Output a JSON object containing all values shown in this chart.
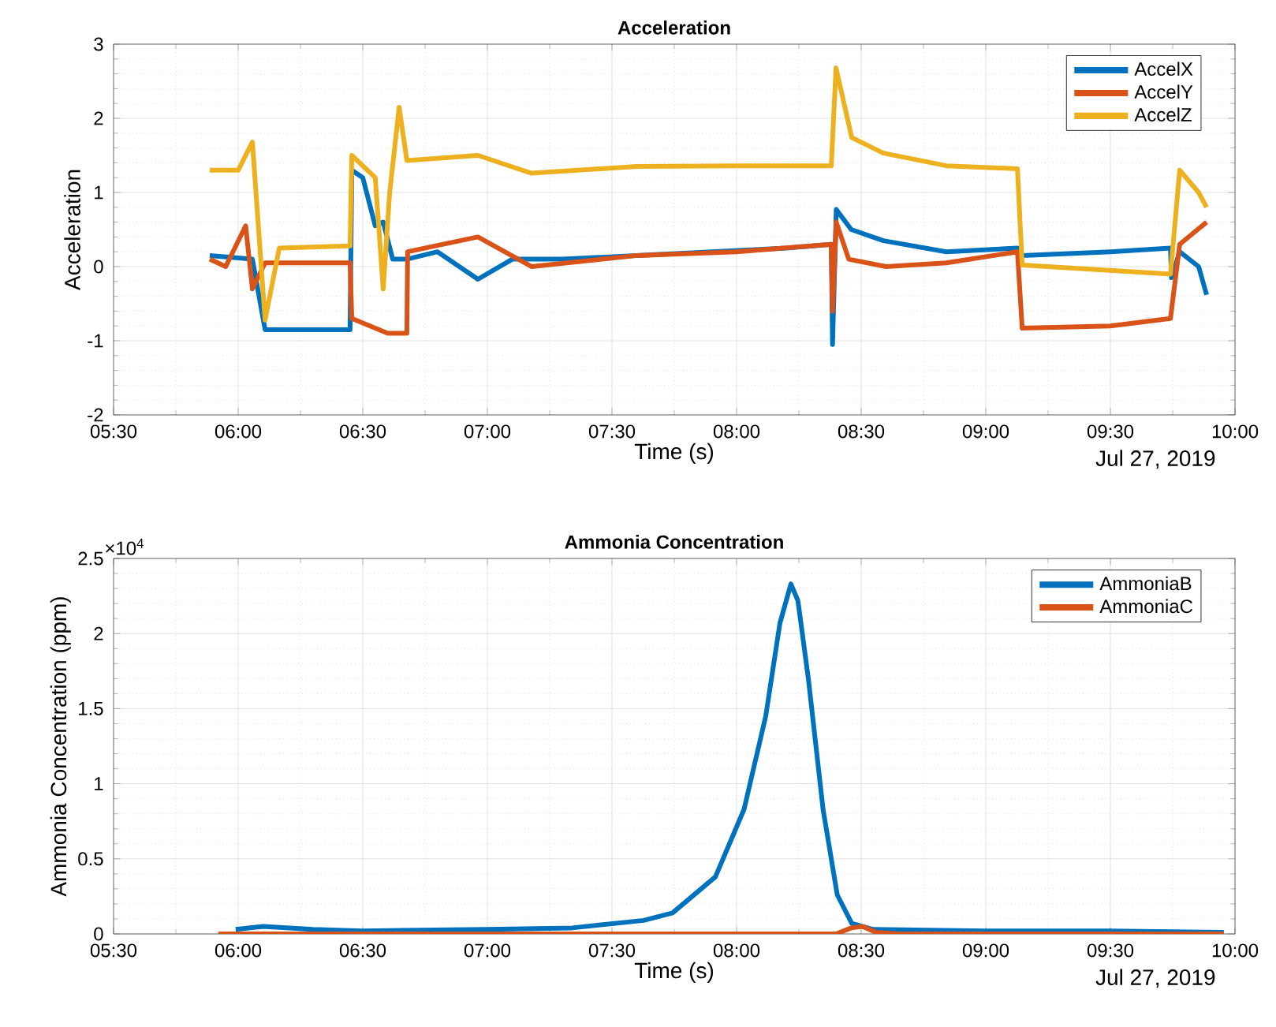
{
  "chart_data": [
    {
      "type": "line",
      "title": "Acceleration",
      "xlabel": "Time (s)",
      "ylabel": "Acceleration",
      "xlim": [
        5.5,
        10
      ],
      "xticks": [
        {
          "value": 5.5,
          "label": "05:30"
        },
        {
          "value": 6,
          "label": "06:00"
        },
        {
          "value": 6.5,
          "label": "06:30"
        },
        {
          "value": 7,
          "label": "07:00"
        },
        {
          "value": 7.5,
          "label": "07:30"
        },
        {
          "value": 8,
          "label": "08:00"
        },
        {
          "value": 8.5,
          "label": "08:30"
        },
        {
          "value": 9,
          "label": "09:00"
        },
        {
          "value": 9.5,
          "label": "09:30"
        },
        {
          "value": 10,
          "label": "10:00"
        }
      ],
      "ylim": [
        -2,
        3
      ],
      "yticks": [
        -2,
        -1,
        0,
        1,
        2,
        3
      ],
      "grid": true,
      "legend": "top right",
      "annotations": [
        "Jul 27, 2019"
      ],
      "series": [
        {
          "name": "AccelX",
          "color": "#0072bd",
          "x": [
            5.886,
            6.057,
            6.108,
            6.449,
            6.456,
            6.5,
            6.55,
            6.582,
            6.62,
            6.677,
            6.8,
            6.962,
            7.1,
            7.3,
            7.6,
            7.9,
            8.2,
            8.38,
            8.385,
            8.4,
            8.46,
            8.589,
            8.842,
            9.127,
            9.146,
            9.5,
            9.741,
            9.745,
            9.778,
            9.854,
            9.886
          ],
          "values": [
            0.15,
            0.1,
            -0.85,
            -0.85,
            1.3,
            1.2,
            0.55,
            0.6,
            0.1,
            0.1,
            0.2,
            -0.17,
            0.1,
            0.1,
            0.15,
            0.2,
            0.25,
            0.3,
            -1.05,
            0.77,
            0.5,
            0.35,
            0.2,
            0.25,
            0.15,
            0.2,
            0.25,
            -0.15,
            0.2,
            0.0,
            -0.38
          ]
        },
        {
          "name": "AccelY",
          "color": "#d95319",
          "x": [
            5.886,
            5.95,
            6.03,
            6.057,
            6.108,
            6.449,
            6.456,
            6.6,
            6.677,
            6.68,
            6.962,
            7.177,
            7.6,
            8.0,
            8.38,
            8.385,
            8.4,
            8.45,
            8.6,
            8.842,
            9.127,
            9.146,
            9.5,
            9.741,
            9.778,
            9.886
          ],
          "values": [
            0.1,
            0.0,
            0.55,
            -0.3,
            0.05,
            0.05,
            -0.7,
            -0.9,
            -0.9,
            0.2,
            0.4,
            0.0,
            0.15,
            0.2,
            0.3,
            -0.6,
            0.6,
            0.1,
            0.0,
            0.05,
            0.2,
            -0.83,
            -0.8,
            -0.7,
            0.3,
            0.6
          ]
        },
        {
          "name": "AccelZ",
          "color": "#edb120",
          "x": [
            5.886,
            6.0,
            6.057,
            6.108,
            6.165,
            6.449,
            6.456,
            6.55,
            6.582,
            6.608,
            6.646,
            6.677,
            6.962,
            7.177,
            7.6,
            8.0,
            8.38,
            8.399,
            8.462,
            8.589,
            8.842,
            9.127,
            9.146,
            9.741,
            9.778,
            9.854,
            9.886
          ],
          "values": [
            1.3,
            1.3,
            1.68,
            -0.72,
            0.25,
            0.28,
            1.5,
            1.2,
            -0.3,
            1.0,
            2.15,
            1.43,
            1.5,
            1.26,
            1.35,
            1.36,
            1.36,
            2.68,
            1.74,
            1.53,
            1.36,
            1.32,
            0.02,
            -0.1,
            1.3,
            1.0,
            0.8
          ]
        }
      ]
    },
    {
      "type": "line",
      "title": "Ammonia Concentration",
      "xlabel": "Time (s)",
      "ylabel": "Ammonia Concentration (ppm)",
      "xlim": [
        5.5,
        10
      ],
      "xticks": [
        {
          "value": 5.5,
          "label": "05:30"
        },
        {
          "value": 6,
          "label": "06:00"
        },
        {
          "value": 6.5,
          "label": "06:30"
        },
        {
          "value": 7,
          "label": "07:00"
        },
        {
          "value": 7.5,
          "label": "07:30"
        },
        {
          "value": 8,
          "label": "08:00"
        },
        {
          "value": 8.5,
          "label": "08:30"
        },
        {
          "value": 9,
          "label": "09:00"
        },
        {
          "value": 9.5,
          "label": "09:30"
        },
        {
          "value": 10,
          "label": "10:00"
        }
      ],
      "ylim": [
        0,
        2.5
      ],
      "yticks": [
        0,
        0.5,
        1,
        1.5,
        2,
        2.5
      ],
      "grid": true,
      "legend": "top right",
      "annotations": [
        "×10$^{4}$",
        "Jul 27, 2019"
      ],
      "series": [
        {
          "name": "AmmoniaB",
          "color": "#0072bd",
          "x": [
            5.99,
            6.1,
            6.3,
            6.5,
            7.0,
            7.34,
            7.627,
            7.743,
            7.915,
            8.03,
            8.117,
            8.174,
            8.218,
            8.246,
            8.288,
            8.347,
            8.404,
            8.462,
            8.548,
            9.0,
            9.5,
            9.955
          ],
          "values": [
            0.03,
            0.05,
            0.03,
            0.02,
            0.03,
            0.04,
            0.09,
            0.14,
            0.38,
            0.83,
            1.45,
            2.07,
            2.33,
            2.22,
            1.7,
            0.83,
            0.26,
            0.07,
            0.03,
            0.02,
            0.02,
            0.01
          ]
        },
        {
          "name": "AmmoniaC",
          "color": "#d95319",
          "x": [
            5.92,
            8.4,
            8.46,
            8.505,
            8.56,
            8.65,
            9.955
          ],
          "values": [
            0,
            0,
            0.04,
            0.05,
            0.01,
            0,
            0
          ]
        }
      ]
    }
  ]
}
